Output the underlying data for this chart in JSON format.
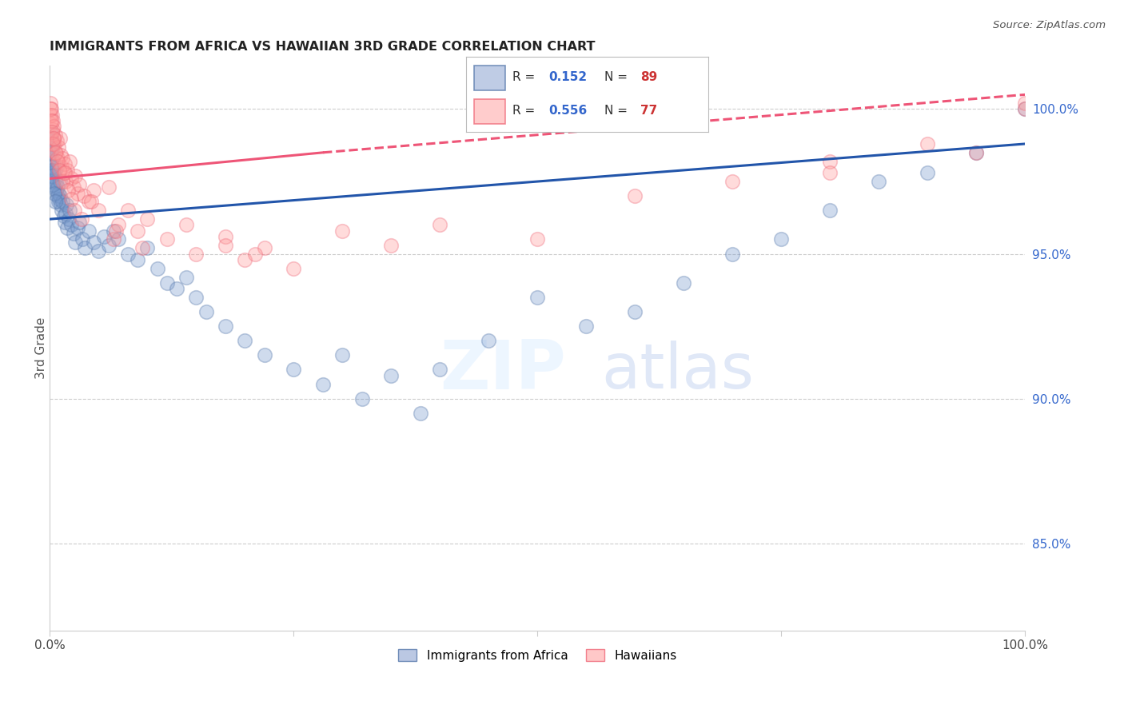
{
  "title": "IMMIGRANTS FROM AFRICA VS HAWAIIAN 3RD GRADE CORRELATION CHART",
  "source": "Source: ZipAtlas.com",
  "ylabel": "3rd Grade",
  "xmin": 0.0,
  "xmax": 100.0,
  "ymin": 82.0,
  "ymax": 101.5,
  "ytick_vals": [
    85.0,
    90.0,
    95.0,
    100.0
  ],
  "ytick_labels": [
    "85.0%",
    "90.0%",
    "95.0%",
    "100.0%"
  ],
  "blue_R": "0.152",
  "blue_N": "89",
  "pink_R": "0.556",
  "pink_N": "77",
  "blue_color": "#7799CC",
  "blue_edge": "#5577AA",
  "pink_color": "#FF9999",
  "pink_edge": "#EE6677",
  "blue_line_color": "#2255AA",
  "pink_line_color": "#EE5577",
  "grid_color": "#CCCCCC",
  "blue_line_y0": 96.2,
  "blue_line_y1": 98.8,
  "pink_line_y0": 97.6,
  "pink_solid_x_end": 28.0,
  "pink_solid_y_end": 98.5,
  "pink_line_y1": 100.5,
  "blue_x": [
    0.05,
    0.08,
    0.1,
    0.12,
    0.15,
    0.18,
    0.2,
    0.22,
    0.25,
    0.28,
    0.3,
    0.35,
    0.4,
    0.45,
    0.5,
    0.55,
    0.6,
    0.65,
    0.7,
    0.75,
    0.8,
    0.85,
    0.9,
    0.95,
    1.0,
    1.05,
    1.1,
    1.2,
    1.3,
    1.4,
    1.5,
    1.6,
    1.7,
    1.8,
    1.9,
    2.0,
    2.2,
    2.4,
    2.6,
    2.8,
    3.0,
    3.3,
    3.6,
    4.0,
    4.5,
    5.0,
    5.5,
    6.0,
    6.5,
    7.0,
    8.0,
    9.0,
    10.0,
    11.0,
    12.0,
    13.0,
    14.0,
    15.0,
    16.0,
    18.0,
    20.0,
    22.0,
    25.0,
    28.0,
    30.0,
    32.0,
    35.0,
    38.0,
    40.0,
    45.0,
    50.0,
    55.0,
    60.0,
    65.0,
    70.0,
    75.0,
    80.0,
    85.0,
    90.0,
    95.0,
    100.0,
    0.06,
    0.09,
    0.14,
    0.19,
    0.24,
    0.32,
    0.42,
    0.52
  ],
  "blue_y": [
    98.5,
    99.2,
    98.8,
    99.0,
    98.3,
    98.7,
    98.9,
    97.8,
    98.5,
    98.0,
    97.5,
    98.2,
    97.8,
    97.3,
    97.6,
    97.9,
    97.2,
    97.5,
    98.0,
    97.0,
    97.3,
    96.8,
    97.1,
    96.9,
    97.5,
    97.0,
    96.7,
    96.5,
    96.8,
    96.3,
    96.1,
    96.4,
    96.7,
    95.9,
    96.2,
    96.5,
    96.0,
    95.7,
    95.4,
    95.9,
    96.1,
    95.5,
    95.2,
    95.8,
    95.4,
    95.1,
    95.6,
    95.3,
    95.8,
    95.5,
    95.0,
    94.8,
    95.2,
    94.5,
    94.0,
    93.8,
    94.2,
    93.5,
    93.0,
    92.5,
    92.0,
    91.5,
    91.0,
    90.5,
    91.5,
    90.0,
    90.8,
    89.5,
    91.0,
    92.0,
    93.5,
    92.5,
    93.0,
    94.0,
    95.0,
    95.5,
    96.5,
    97.5,
    97.8,
    98.5,
    100.0,
    99.0,
    98.5,
    98.0,
    97.9,
    97.7,
    97.4,
    97.1,
    96.8
  ],
  "pink_x": [
    0.05,
    0.08,
    0.1,
    0.15,
    0.2,
    0.25,
    0.3,
    0.35,
    0.4,
    0.45,
    0.5,
    0.6,
    0.7,
    0.8,
    0.9,
    1.0,
    1.1,
    1.2,
    1.3,
    1.4,
    1.5,
    1.6,
    1.8,
    2.0,
    2.2,
    2.4,
    2.6,
    2.8,
    3.0,
    3.5,
    4.0,
    4.5,
    5.0,
    6.0,
    7.0,
    8.0,
    9.0,
    10.0,
    12.0,
    15.0,
    18.0,
    20.0,
    22.0,
    25.0,
    30.0,
    35.0,
    40.0,
    50.0,
    60.0,
    70.0,
    80.0,
    90.0,
    100.0,
    0.06,
    0.12,
    0.18,
    0.28,
    0.38,
    0.55,
    0.75,
    0.95,
    1.25,
    1.55,
    1.85,
    2.15,
    2.5,
    3.2,
    4.2,
    6.5,
    9.5,
    14.0,
    21.0,
    6.8,
    18.0,
    80.0,
    95.0,
    100.0
  ],
  "pink_y": [
    100.2,
    99.8,
    100.0,
    99.5,
    99.8,
    99.3,
    99.6,
    99.0,
    99.4,
    98.8,
    99.1,
    98.5,
    98.9,
    98.3,
    98.7,
    99.0,
    98.4,
    98.0,
    98.3,
    97.8,
    98.1,
    97.5,
    97.9,
    98.2,
    97.6,
    97.3,
    97.7,
    97.1,
    97.4,
    97.0,
    96.8,
    97.2,
    96.5,
    97.3,
    96.0,
    96.5,
    95.8,
    96.2,
    95.5,
    95.0,
    95.6,
    94.8,
    95.2,
    94.5,
    95.8,
    95.3,
    96.0,
    95.5,
    97.0,
    97.5,
    98.2,
    98.8,
    100.2,
    100.0,
    99.6,
    99.2,
    98.8,
    99.0,
    98.5,
    98.2,
    97.9,
    97.5,
    97.8,
    97.2,
    96.9,
    96.5,
    96.2,
    96.8,
    95.5,
    95.2,
    96.0,
    95.0,
    95.8,
    95.3,
    97.8,
    98.5,
    100.0
  ]
}
